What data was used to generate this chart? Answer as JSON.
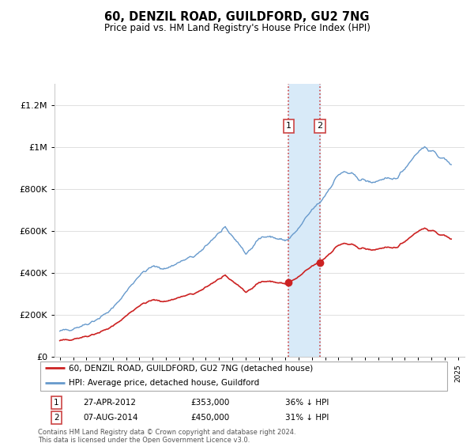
{
  "title": "60, DENZIL ROAD, GUILDFORD, GU2 7NG",
  "subtitle": "Price paid vs. HM Land Registry's House Price Index (HPI)",
  "legend_line1": "60, DENZIL ROAD, GUILDFORD, GU2 7NG (detached house)",
  "legend_line2": "HPI: Average price, detached house, Guildford",
  "footnote": "Contains HM Land Registry data © Crown copyright and database right 2024.\nThis data is licensed under the Open Government Licence v3.0.",
  "transaction1_date": "27-APR-2012",
  "transaction1_price": 353000,
  "transaction1_hpi": "36% ↓ HPI",
  "transaction2_date": "07-AUG-2014",
  "transaction2_price": 450000,
  "transaction2_hpi": "31% ↓ HPI",
  "hpi_color": "#6699cc",
  "property_color": "#cc2222",
  "marker_color": "#cc2222",
  "highlight_color": "#d8eaf8",
  "vline_color": "#cc4444",
  "ylim_min": 0,
  "ylim_max": 1300000,
  "year_start": 1995,
  "year_end": 2025
}
